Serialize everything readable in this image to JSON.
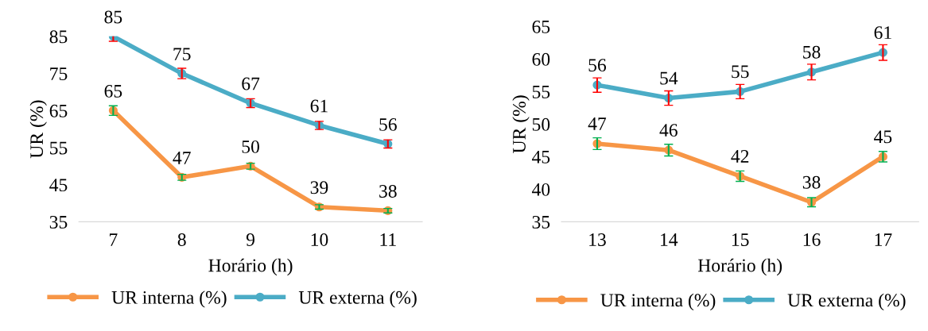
{
  "chart_data": [
    {
      "type": "line",
      "xlabel": "Horário (h)",
      "ylabel": "UR (%)",
      "categories": [
        "7",
        "8",
        "9",
        "10",
        "11"
      ],
      "ylim": [
        35,
        85
      ],
      "yticks": [
        35,
        45,
        55,
        65,
        75,
        85
      ],
      "grid": false,
      "legend": "bottom",
      "marker": "circle",
      "data_labels": true,
      "series": [
        {
          "name": "UR interna (%)",
          "color": "#f79646",
          "values": [
            65,
            47,
            50,
            39,
            38
          ],
          "errors": [
            1.3,
            0.8,
            0.8,
            0.6,
            0.6
          ]
        },
        {
          "name": "UR externa (%)",
          "color": "#4bacc6",
          "values": [
            85,
            75,
            67,
            61,
            56
          ],
          "errors": [
            1.3,
            1.4,
            1.2,
            1.1,
            1.1
          ]
        }
      ]
    },
    {
      "type": "line",
      "xlabel": "Horário (h)",
      "ylabel": "UR (%)",
      "categories": [
        "13",
        "14",
        "15",
        "16",
        "17"
      ],
      "ylim": [
        35,
        65
      ],
      "yticks": [
        35,
        40,
        45,
        50,
        55,
        60,
        65
      ],
      "grid": false,
      "legend": "bottom",
      "marker": "circle",
      "data_labels": true,
      "series": [
        {
          "name": "UR interna (%)",
          "color": "#f79646",
          "values": [
            47,
            46,
            42,
            38,
            45
          ],
          "errors": [
            0.9,
            0.9,
            0.8,
            0.7,
            0.8
          ]
        },
        {
          "name": "UR externa (%)",
          "color": "#4bacc6",
          "values": [
            56,
            54,
            55,
            58,
            61
          ],
          "errors": [
            1.1,
            1.1,
            1.1,
            1.2,
            1.2
          ]
        }
      ]
    }
  ]
}
